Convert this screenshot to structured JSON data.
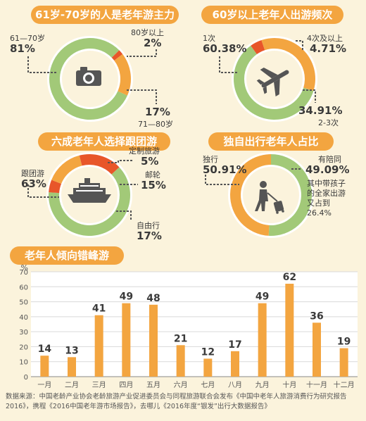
{
  "colors": {
    "orange": "#f3a540",
    "green": "#a2c978",
    "red": "#e8562a",
    "dark": "#555555",
    "title_bg": "#f3a540",
    "bg": "#fbf3dc"
  },
  "panel1": {
    "title": "61岁-70岁的人是老年游主力",
    "icon": "camera-icon",
    "items": [
      {
        "label": "61—70岁",
        "value": "81%",
        "pct": 81
      },
      {
        "label": "80岁以上",
        "value": "2%",
        "pct": 2
      },
      {
        "label": "71—80岁",
        "value": "17%",
        "pct": 17
      }
    ]
  },
  "panel2": {
    "title": "60岁以上老年人出游频次",
    "icon": "airplane-icon",
    "items": [
      {
        "label": "1次",
        "value": "60.38%",
        "pct": 60.38
      },
      {
        "label": "4次及以上",
        "value": "4.71%",
        "pct": 4.71
      },
      {
        "label": "2-3次",
        "value": "34.91%",
        "pct": 34.91
      }
    ]
  },
  "panel3": {
    "title": "六成老年人选择跟团游",
    "icon": "cruise-ship-icon",
    "items": [
      {
        "label": "跟团游",
        "value": "63%",
        "pct": 63
      },
      {
        "label": "定制旅游",
        "value": "5%",
        "pct": 5
      },
      {
        "label": "邮轮",
        "value": "15%",
        "pct": 15
      },
      {
        "label": "自由行",
        "value": "17%",
        "pct": 17
      }
    ]
  },
  "panel4": {
    "title": "独自出行老年人占比",
    "icon": "traveler-with-suitcase-icon",
    "items": [
      {
        "label": "独行",
        "value": "50.91%",
        "pct": 50.91
      },
      {
        "label": "有陪同",
        "value": "49.09%",
        "pct": 49.09
      }
    ],
    "note_lines": [
      "其中带孩子",
      "的全家出游",
      "又占到",
      "26.4%"
    ]
  },
  "bar_title": "老年人倾向错峰游",
  "chart_data": {
    "type": "bar",
    "title": "老年人倾向错峰游",
    "ylabel": "%",
    "categories": [
      "一月",
      "二月",
      "三月",
      "四月",
      "五月",
      "六月",
      "七月",
      "八月",
      "九月",
      "十月",
      "十一月",
      "十二月"
    ],
    "values": [
      14,
      13,
      41,
      49,
      48,
      21,
      12,
      17,
      49,
      62,
      36,
      19
    ],
    "yticks": [
      0,
      10,
      20,
      30,
      40,
      50,
      60,
      70
    ],
    "ylim": [
      0,
      70
    ],
    "grid": true
  },
  "source": "数据来源：中国老龄产业协会老龄旅游产业促进委员会与同程旅游联合会发布《中国中老年人旅游消费行为研究报告2016》，携程《2016中国老年游市场报告》，去哪儿《2016年度“银发”出行大数据报告》"
}
